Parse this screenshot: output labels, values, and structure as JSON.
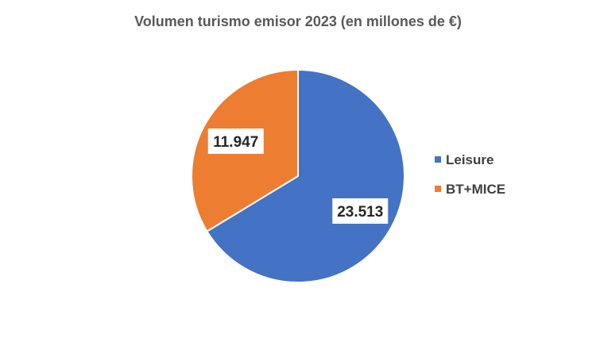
{
  "chart_data": {
    "type": "pie",
    "title": "Volumen turismo emisor 2023 (en millones de €)",
    "categories": [
      "Leisure",
      "BT+MICE"
    ],
    "values": [
      23513,
      11947
    ],
    "data_labels": [
      "23.513",
      "11.947"
    ],
    "colors": [
      "#4472C4",
      "#ED7D31"
    ],
    "legend": {
      "position": "right",
      "entries": [
        "Leisure",
        "BT+MICE"
      ]
    }
  }
}
